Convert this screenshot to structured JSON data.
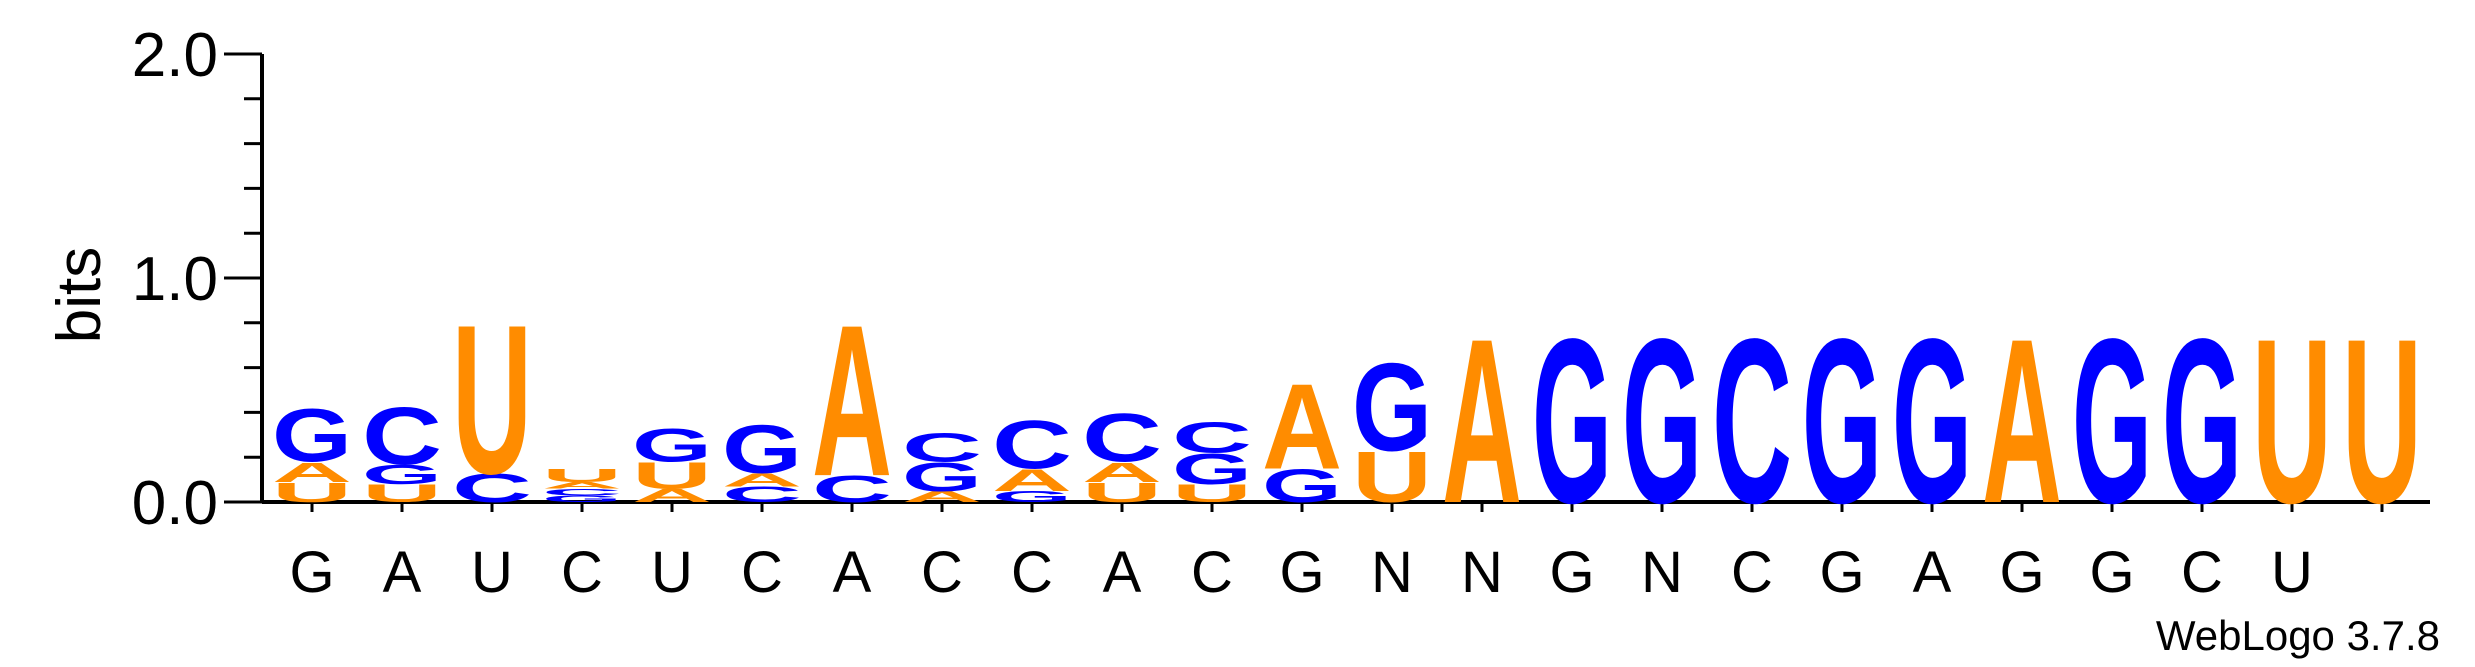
{
  "chart_data": {
    "type": "sequence-logo",
    "ylabel": "bits",
    "ylim": [
      0,
      2
    ],
    "y_ticks": [
      "0.0",
      "1.0",
      "2.0"
    ],
    "colors": {
      "purine_A_G": "#ff8c00",
      "pyrimidine_C_U": "#0000ff",
      "note_icon": "orange=A/U, blue=G/C"
    },
    "palette": {
      "A": "#ff8c00",
      "U": "#ff8c00",
      "G": "#0000ff",
      "C": "#0000ff"
    },
    "positions": [
      {
        "label": "G",
        "stack": [
          {
            "l": "U",
            "v": 0.09
          },
          {
            "l": "A",
            "v": 0.09
          },
          {
            "l": "G",
            "v": 0.24
          }
        ]
      },
      {
        "label": "A",
        "stack": [
          {
            "l": "U",
            "v": 0.08
          },
          {
            "l": "G",
            "v": 0.09
          },
          {
            "l": "C",
            "v": 0.26
          }
        ]
      },
      {
        "label": "U",
        "stack": [
          {
            "l": "C",
            "v": 0.13
          },
          {
            "l": "U",
            "v": 0.68
          }
        ]
      },
      {
        "label": "C",
        "stack": [
          {
            "l": "G",
            "v": 0.03
          },
          {
            "l": "C",
            "v": 0.03
          },
          {
            "l": "A",
            "v": 0.03
          },
          {
            "l": "U",
            "v": 0.06
          }
        ]
      },
      {
        "label": "U",
        "stack": [
          {
            "l": "A",
            "v": 0.06
          },
          {
            "l": "U",
            "v": 0.12
          },
          {
            "l": "G",
            "v": 0.15
          }
        ]
      },
      {
        "label": "C",
        "stack": [
          {
            "l": "C",
            "v": 0.07
          },
          {
            "l": "A",
            "v": 0.06
          },
          {
            "l": "G",
            "v": 0.22
          }
        ]
      },
      {
        "label": "A",
        "stack": [
          {
            "l": "C",
            "v": 0.12
          },
          {
            "l": "A",
            "v": 0.69
          }
        ]
      },
      {
        "label": "C",
        "stack": [
          {
            "l": "A",
            "v": 0.05
          },
          {
            "l": "G",
            "v": 0.13
          },
          {
            "l": "C",
            "v": 0.13
          }
        ]
      },
      {
        "label": "C",
        "stack": [
          {
            "l": "G",
            "v": 0.05
          },
          {
            "l": "A",
            "v": 0.1
          },
          {
            "l": "C",
            "v": 0.22
          }
        ]
      },
      {
        "label": "A",
        "stack": [
          {
            "l": "U",
            "v": 0.09
          },
          {
            "l": "A",
            "v": 0.09
          },
          {
            "l": "C",
            "v": 0.22
          }
        ]
      },
      {
        "label": "C",
        "stack": [
          {
            "l": "U",
            "v": 0.08
          },
          {
            "l": "G",
            "v": 0.14
          },
          {
            "l": "C",
            "v": 0.14
          }
        ]
      },
      {
        "label": "G",
        "stack": [
          {
            "l": "G",
            "v": 0.15
          },
          {
            "l": "A",
            "v": 0.39
          }
        ]
      },
      {
        "label": "N",
        "stack": [
          {
            "l": "U",
            "v": 0.23
          },
          {
            "l": "G",
            "v": 0.4
          }
        ]
      },
      {
        "label": "N",
        "stack": [
          {
            "l": "A",
            "v": 0.75
          }
        ]
      },
      {
        "label": "G",
        "stack": [
          {
            "l": "G",
            "v": 0.75
          }
        ]
      },
      {
        "label": "N",
        "stack": [
          {
            "l": "G",
            "v": 0.75
          }
        ]
      },
      {
        "label": "C",
        "stack": [
          {
            "l": "C",
            "v": 0.75
          }
        ]
      },
      {
        "label": "G",
        "stack": [
          {
            "l": "G",
            "v": 0.75
          }
        ]
      },
      {
        "label": "A",
        "stack": [
          {
            "l": "G",
            "v": 0.75
          }
        ]
      },
      {
        "label": "G",
        "stack": [
          {
            "l": "A",
            "v": 0.75
          }
        ]
      },
      {
        "label": "G",
        "stack": [
          {
            "l": "G",
            "v": 0.75
          }
        ]
      },
      {
        "label": "C",
        "stack": [
          {
            "l": "G",
            "v": 0.75
          }
        ]
      },
      {
        "label": "U",
        "stack": [
          {
            "l": "U",
            "v": 0.75
          }
        ]
      },
      {
        "label": "",
        "stack": [
          {
            "l": "U",
            "v": 0.75
          }
        ]
      }
    ],
    "credit": "WebLogo 3.7.8"
  }
}
